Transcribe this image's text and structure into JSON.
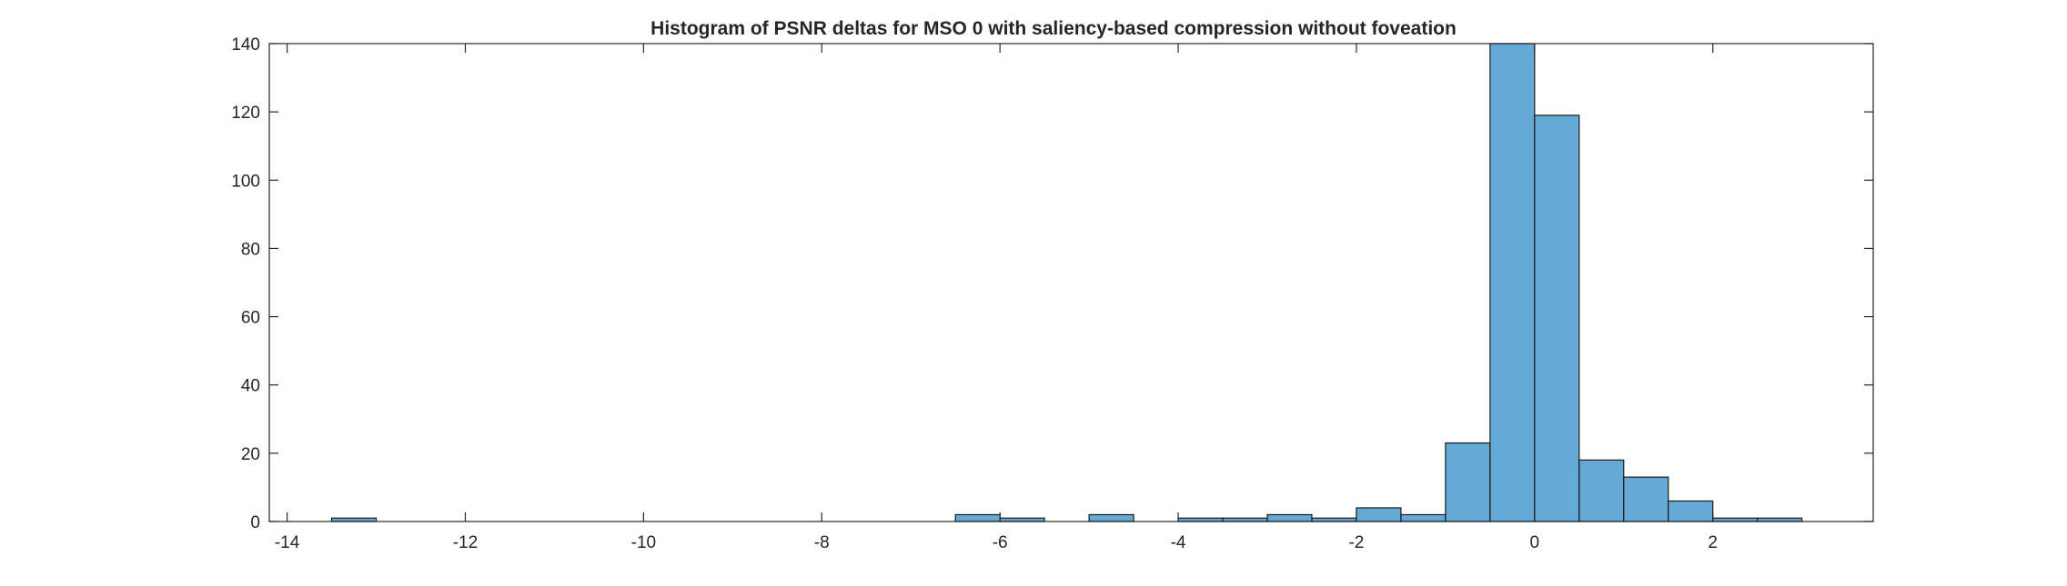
{
  "chart_data": {
    "type": "bar",
    "title": "Histogram of PSNR deltas for MSO 0 with saliency-based compression without foveation",
    "xlabel": "",
    "ylabel": "",
    "xlim": [
      -14.2,
      3.8
    ],
    "ylim": [
      0,
      140
    ],
    "grid": false,
    "bin_width": 0.5,
    "x_ticks": [
      -14,
      -12,
      -10,
      -8,
      -6,
      -4,
      -2,
      0,
      2
    ],
    "x_tick_labels": [
      "-14",
      "-12",
      "-10",
      "-8",
      "-6",
      "-4",
      "-2",
      "0",
      "2"
    ],
    "y_ticks": [
      0,
      20,
      40,
      60,
      80,
      100,
      120,
      140
    ],
    "y_tick_labels": [
      "0",
      "20",
      "40",
      "60",
      "80",
      "100",
      "120",
      "140"
    ],
    "bins": [
      {
        "x0": -13.5,
        "x1": -13.0,
        "count": 1
      },
      {
        "x0": -13.0,
        "x1": -12.5,
        "count": 0
      },
      {
        "x0": -12.5,
        "x1": -12.0,
        "count": 0
      },
      {
        "x0": -12.0,
        "x1": -11.5,
        "count": 0
      },
      {
        "x0": -11.5,
        "x1": -11.0,
        "count": 0
      },
      {
        "x0": -11.0,
        "x1": -10.5,
        "count": 0
      },
      {
        "x0": -10.5,
        "x1": -10.0,
        "count": 0
      },
      {
        "x0": -10.0,
        "x1": -9.5,
        "count": 0
      },
      {
        "x0": -9.5,
        "x1": -9.0,
        "count": 0
      },
      {
        "x0": -9.0,
        "x1": -8.5,
        "count": 0
      },
      {
        "x0": -8.5,
        "x1": -8.0,
        "count": 0
      },
      {
        "x0": -8.0,
        "x1": -7.5,
        "count": 0
      },
      {
        "x0": -7.5,
        "x1": -7.0,
        "count": 0
      },
      {
        "x0": -7.0,
        "x1": -6.5,
        "count": 0
      },
      {
        "x0": -6.5,
        "x1": -6.0,
        "count": 2
      },
      {
        "x0": -6.0,
        "x1": -5.5,
        "count": 1
      },
      {
        "x0": -5.5,
        "x1": -5.0,
        "count": 0
      },
      {
        "x0": -5.0,
        "x1": -4.5,
        "count": 2
      },
      {
        "x0": -4.5,
        "x1": -4.0,
        "count": 0
      },
      {
        "x0": -4.0,
        "x1": -3.5,
        "count": 1
      },
      {
        "x0": -3.5,
        "x1": -3.0,
        "count": 1
      },
      {
        "x0": -3.0,
        "x1": -2.5,
        "count": 2
      },
      {
        "x0": -2.5,
        "x1": -2.0,
        "count": 1
      },
      {
        "x0": -2.0,
        "x1": -1.5,
        "count": 4
      },
      {
        "x0": -1.5,
        "x1": -1.0,
        "count": 2
      },
      {
        "x0": -1.0,
        "x1": -0.5,
        "count": 23
      },
      {
        "x0": -0.5,
        "x1": 0.0,
        "count": 140
      },
      {
        "x0": 0.0,
        "x1": 0.5,
        "count": 119
      },
      {
        "x0": 0.5,
        "x1": 1.0,
        "count": 18
      },
      {
        "x0": 1.0,
        "x1": 1.5,
        "count": 13
      },
      {
        "x0": 1.5,
        "x1": 2.0,
        "count": 6
      },
      {
        "x0": 2.0,
        "x1": 2.5,
        "count": 1
      },
      {
        "x0": 2.5,
        "x1": 3.0,
        "count": 1
      }
    ],
    "colors": {
      "bar_fill": "#65a9d7",
      "bar_edge": "#1b1b1b",
      "axis": "#262626"
    }
  }
}
